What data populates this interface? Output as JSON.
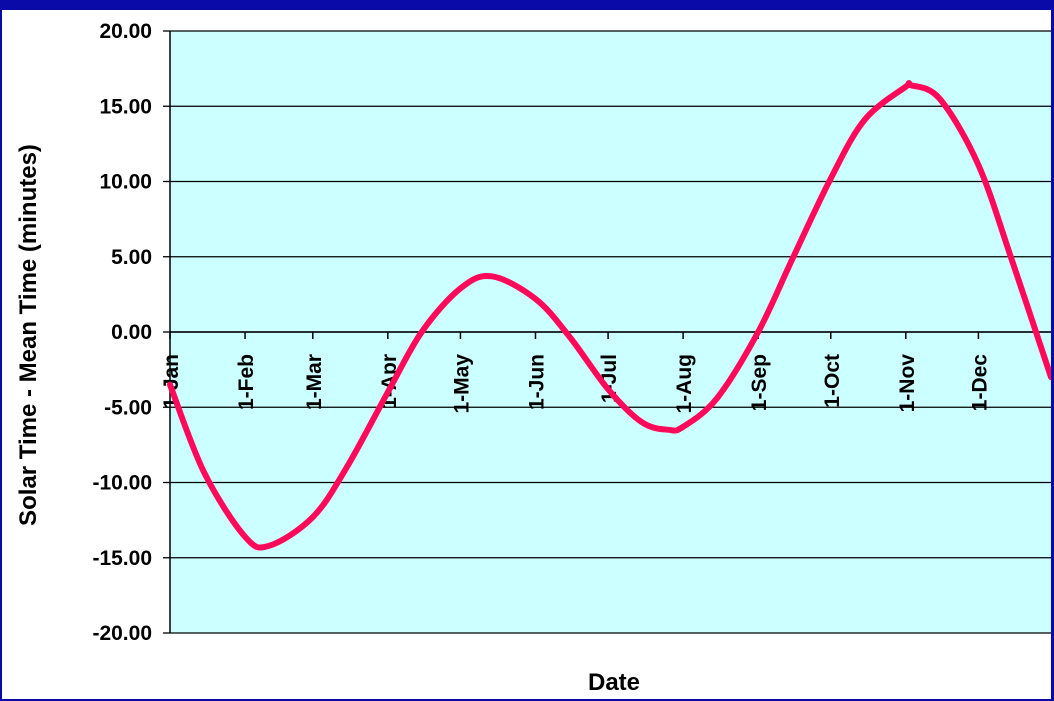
{
  "chart_data": {
    "type": "line",
    "xlabel": "Date",
    "ylabel": "Solar Time - Mean Time (minutes)",
    "ylim": [
      -20,
      20
    ],
    "yticks": [
      "20.00",
      "15.00",
      "10.00",
      "5.00",
      "0.00",
      "-5.00",
      "-10.00",
      "-15.00",
      "-20.00"
    ],
    "categories": [
      "1-Jan",
      "1-Feb",
      "1-Mar",
      "1-Apr",
      "1-May",
      "1-Jun",
      "1-Jul",
      "1-Aug",
      "1-Sep",
      "1-Oct",
      "1-Nov",
      "1-Dec"
    ],
    "grid": true,
    "background_color": "#ccffff",
    "line_color": "#ff0a5a",
    "series": [
      {
        "x": [
          "1-Jan",
          "15-Jan",
          "1-Feb",
          "11-Feb",
          "1-Mar",
          "15-Mar",
          "1-Apr",
          "15-Apr",
          "1-May",
          "14-May",
          "1-Jun",
          "15-Jun",
          "1-Jul",
          "15-Jul",
          "26-Jul",
          "1-Aug",
          "15-Aug",
          "1-Sep",
          "15-Sep",
          "1-Oct",
          "15-Oct",
          "1-Nov",
          "3-Nov",
          "15-Nov",
          "1-Dec",
          "15-Dec",
          "31-Dec"
        ],
        "values": [
          -3.5,
          -9.3,
          -13.6,
          -14.2,
          -12.3,
          -9.0,
          -4.0,
          0.0,
          2.9,
          3.7,
          2.2,
          -0.3,
          -3.8,
          -6.0,
          -6.5,
          -6.3,
          -4.4,
          0.0,
          4.8,
          10.2,
          14.1,
          16.3,
          16.4,
          15.5,
          11.1,
          4.7,
          -3.0
        ]
      }
    ]
  }
}
